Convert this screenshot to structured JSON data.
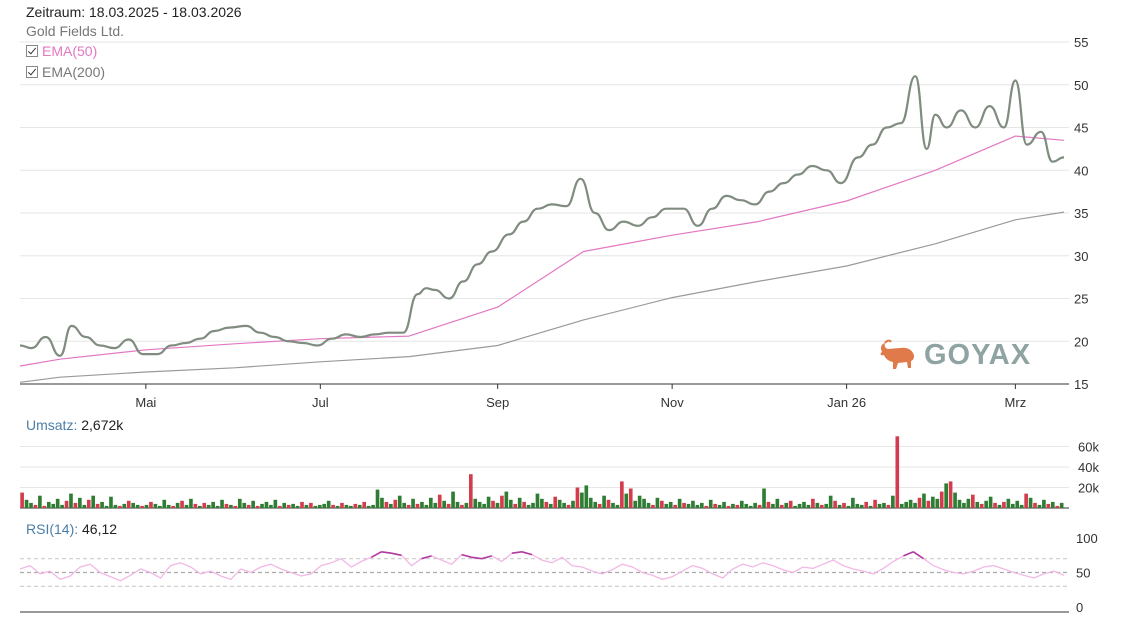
{
  "header": {
    "period": "Zeitraum: 18.03.2025 - 18.03.2026",
    "instrument": "Gold Fields Ltd."
  },
  "legend": [
    {
      "label": "EMA(50)",
      "checked": true,
      "color": "#e377c2"
    },
    {
      "label": "EMA(200)",
      "checked": true,
      "color": "#777777"
    }
  ],
  "watermark": {
    "text": "GOYAX",
    "icon": "bull-icon",
    "color": "#e07a4a"
  },
  "colors": {
    "price": "#7f8c7f",
    "ema50": "#e377c2",
    "ema200": "#9a9a9a",
    "volume_up": "#2e7d32",
    "volume_down": "#d33c4c",
    "rsi": "#f2b8e6",
    "rsi_overbought": "#b03aa0",
    "grid": "#e6e6e6"
  },
  "chart_data": [
    {
      "type": "line",
      "x_range": [
        "2025-03-18",
        "2026-03-18"
      ],
      "x_tick_dates": [
        "2025-05-01",
        "2025-07-01",
        "2025-09-01",
        "2025-11-01",
        "2026-01-01",
        "2026-03-01"
      ],
      "x_tick_labels": [
        "Mai",
        "Jul",
        "Sep",
        "Nov",
        "Jan 26",
        "Mrz"
      ],
      "ylim": [
        15,
        55
      ],
      "y_ticks": [
        15,
        20,
        25,
        30,
        35,
        40,
        45,
        50,
        55
      ],
      "grid": true,
      "series": [
        {
          "name": "Gold Fields Ltd.",
          "x": [
            "2025-03-18",
            "2025-03-22",
            "2025-03-27",
            "2025-04-01",
            "2025-04-05",
            "2025-04-10",
            "2025-04-15",
            "2025-04-20",
            "2025-04-25",
            "2025-04-30",
            "2025-05-05",
            "2025-05-10",
            "2025-05-15",
            "2025-05-20",
            "2025-05-25",
            "2025-05-30",
            "2025-06-05",
            "2025-06-10",
            "2025-06-15",
            "2025-06-20",
            "2025-06-25",
            "2025-06-30",
            "2025-07-05",
            "2025-07-10",
            "2025-07-15",
            "2025-07-20",
            "2025-07-25",
            "2025-07-30",
            "2025-08-04",
            "2025-08-07",
            "2025-08-10",
            "2025-08-15",
            "2025-08-20",
            "2025-08-25",
            "2025-08-30",
            "2025-09-05",
            "2025-09-10",
            "2025-09-15",
            "2025-09-20",
            "2025-09-25",
            "2025-09-30",
            "2025-10-05",
            "2025-10-10",
            "2025-10-15",
            "2025-10-20",
            "2025-10-25",
            "2025-10-30",
            "2025-11-05",
            "2025-11-10",
            "2025-11-15",
            "2025-11-20",
            "2025-11-25",
            "2025-11-30",
            "2025-12-05",
            "2025-12-10",
            "2025-12-15",
            "2025-12-20",
            "2025-12-25",
            "2025-12-30",
            "2026-01-05",
            "2026-01-10",
            "2026-01-15",
            "2026-01-20",
            "2026-01-25",
            "2026-01-29",
            "2026-02-01",
            "2026-02-05",
            "2026-02-10",
            "2026-02-15",
            "2026-02-20",
            "2026-02-25",
            "2026-03-01",
            "2026-03-05",
            "2026-03-10",
            "2026-03-14",
            "2026-03-18"
          ],
          "y": [
            19.5,
            19.2,
            20.5,
            18.3,
            21.8,
            20.5,
            19.5,
            19.2,
            20.2,
            18.5,
            18.5,
            19.5,
            19.8,
            20.3,
            21.2,
            21.6,
            21.8,
            21.0,
            20.5,
            20.0,
            19.8,
            19.5,
            20.3,
            20.8,
            20.5,
            20.8,
            21.0,
            21.0,
            25.5,
            26.2,
            26.0,
            25.0,
            27.0,
            29.0,
            30.5,
            32.5,
            34.0,
            35.5,
            36.0,
            35.8,
            39.0,
            35.0,
            33.0,
            34.0,
            33.5,
            34.5,
            35.5,
            35.5,
            33.5,
            35.5,
            37.0,
            36.5,
            36.0,
            37.5,
            38.5,
            39.5,
            40.5,
            40.0,
            38.5,
            41.5,
            43.0,
            45.0,
            45.5,
            51.0,
            42.5,
            46.5,
            45.0,
            47.0,
            45.0,
            47.5,
            45.0,
            50.5,
            43.0,
            44.5,
            41.0,
            41.5
          ],
          "color": "#7f8c7f"
        },
        {
          "name": "EMA(50)",
          "x": [
            "2025-03-18",
            "2025-04-01",
            "2025-05-01",
            "2025-06-01",
            "2025-07-01",
            "2025-08-01",
            "2025-09-01",
            "2025-10-01",
            "2025-11-01",
            "2025-12-01",
            "2026-01-01",
            "2026-02-01",
            "2026-03-01",
            "2026-03-18"
          ],
          "y": [
            17.1,
            17.9,
            19.0,
            19.7,
            20.3,
            20.6,
            24.0,
            30.5,
            32.4,
            34.0,
            36.4,
            40.0,
            44.0,
            43.5
          ],
          "color": "#e377c2"
        },
        {
          "name": "EMA(200)",
          "x": [
            "2025-03-18",
            "2025-04-01",
            "2025-05-01",
            "2025-06-01",
            "2025-07-01",
            "2025-08-01",
            "2025-09-01",
            "2025-10-01",
            "2025-11-01",
            "2025-12-01",
            "2026-01-01",
            "2026-02-01",
            "2026-03-01",
            "2026-03-18"
          ],
          "y": [
            15.2,
            15.8,
            16.4,
            16.9,
            17.6,
            18.2,
            19.5,
            22.5,
            25.1,
            27.0,
            28.8,
            31.4,
            34.2,
            35.1
          ],
          "color": "#9a9a9a"
        }
      ]
    },
    {
      "type": "bar",
      "title": "Umsatz",
      "value_label": "2,672k",
      "ylim": [
        0,
        80000
      ],
      "y_ticks": [
        20000,
        40000,
        60000
      ],
      "y_tick_labels": [
        "20k",
        "40k",
        "60k"
      ],
      "values": [
        15000,
        8000,
        5000,
        3000,
        12000,
        2000,
        6000,
        4000,
        9000,
        3000,
        7000,
        14000,
        5000,
        10000,
        3000,
        8000,
        12000,
        4000,
        6000,
        2000,
        11000,
        3000,
        2000,
        4000,
        7000,
        5000,
        3000,
        2000,
        3000,
        6000,
        4000,
        2000,
        8000,
        3000,
        2000,
        5000,
        7000,
        3000,
        9000,
        4000,
        2000,
        5000,
        3000,
        6000,
        2000,
        8000,
        4000,
        3000,
        2000,
        9000,
        5000,
        3000,
        7000,
        2000,
        4000,
        6000,
        3000,
        8000,
        2000,
        5000,
        3000,
        4000,
        2000,
        6000,
        3000,
        5000,
        2000,
        3000,
        4000,
        7000,
        3000,
        2000,
        5000,
        3000,
        2000,
        4000,
        3000,
        6000,
        2000,
        3000,
        18000,
        10000,
        6000,
        4000,
        8000,
        12000,
        5000,
        3000,
        9000,
        4000,
        6000,
        3000,
        10000,
        5000,
        13000,
        7000,
        4000,
        16000,
        6000,
        3000,
        5000,
        33000,
        9000,
        6000,
        4000,
        11000,
        7000,
        5000,
        12000,
        16000,
        8000,
        4000,
        10000,
        6000,
        3000,
        5000,
        14000,
        9000,
        6000,
        4000,
        11000,
        8000,
        5000,
        3000,
        7000,
        20000,
        15000,
        22000,
        10000,
        6000,
        4000,
        12000,
        8000,
        5000,
        3000,
        26000,
        14000,
        19000,
        7000,
        12000,
        9000,
        5000,
        3000,
        10000,
        7000,
        4000,
        6000,
        3000,
        9000,
        5000,
        4000,
        7000,
        3000,
        5000,
        2000,
        8000,
        4000,
        3000,
        6000,
        2000,
        4000,
        3000,
        7000,
        4000,
        2000,
        5000,
        3000,
        19000,
        6000,
        4000,
        9000,
        3000,
        5000,
        7000,
        2000,
        4000,
        6000,
        3000,
        9000,
        5000,
        3000,
        4000,
        12000,
        7000,
        3000,
        5000,
        2000,
        10000,
        4000,
        3000,
        6000,
        2000,
        8000,
        4000,
        5000,
        3000,
        12000,
        70000,
        4000,
        6000,
        8000,
        5000,
        10000,
        14000,
        7000,
        11000,
        9000,
        16000,
        24000,
        26000,
        15000,
        8000,
        5000,
        9000,
        13000,
        6000,
        4000,
        7000,
        11000,
        5000,
        3000,
        6000,
        9000,
        4000,
        7000,
        3000,
        14000,
        10000,
        5000,
        3000,
        8000,
        4000,
        6000,
        2000,
        5000
      ],
      "colors_by_bar": "alternating up/down"
    },
    {
      "type": "line",
      "title": "RSI(14)",
      "value_label": "46,12",
      "ylim": [
        0,
        100
      ],
      "y_ticks": [
        0,
        50,
        100
      ],
      "reference_lines": [
        30,
        50,
        70
      ],
      "series": [
        {
          "name": "RSI(14)",
          "values": [
            55,
            60,
            48,
            52,
            40,
            45,
            58,
            62,
            50,
            44,
            38,
            46,
            55,
            50,
            42,
            60,
            64,
            58,
            48,
            52,
            45,
            40,
            55,
            50,
            58,
            62,
            55,
            50,
            45,
            48,
            60,
            64,
            70,
            58,
            66,
            72,
            80,
            78,
            75,
            60,
            70,
            74,
            68,
            62,
            76,
            72,
            70,
            74,
            66,
            78,
            80,
            76,
            68,
            64,
            72,
            60,
            58,
            52,
            48,
            54,
            62,
            58,
            50,
            46,
            40,
            44,
            52,
            60,
            56,
            48,
            42,
            55,
            62,
            58,
            64,
            60,
            54,
            50,
            58,
            56,
            62,
            68,
            60,
            55,
            52,
            48,
            56,
            66,
            74,
            80,
            70,
            60,
            54,
            50,
            48,
            52,
            58,
            60,
            55,
            50,
            46,
            42,
            48,
            52,
            46
          ]
        }
      ]
    }
  ]
}
